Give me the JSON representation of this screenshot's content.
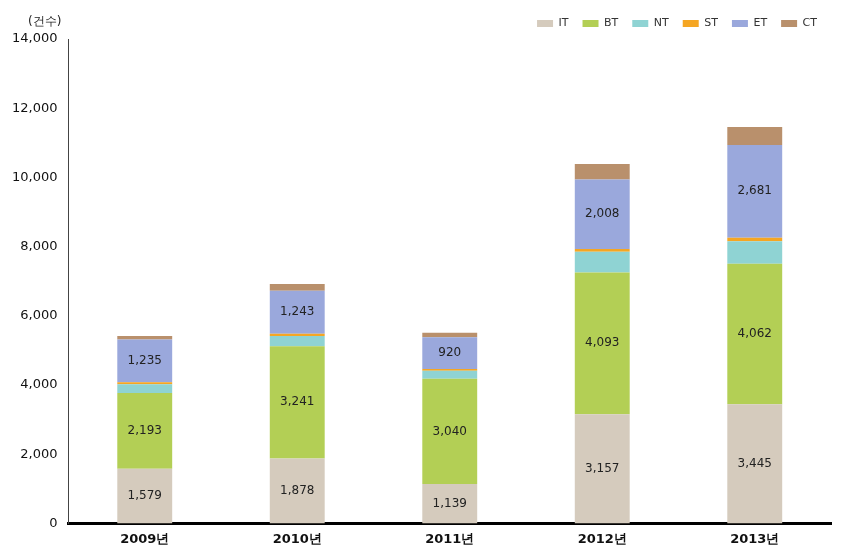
{
  "chart_data": {
    "type": "bar",
    "stacked": true,
    "grid": false,
    "legend": "top-right",
    "y_label": "(건수)",
    "categories": [
      "2009년",
      "2010년",
      "2011년",
      "2012년",
      "2013년"
    ],
    "ylim": [
      0,
      14000
    ],
    "yticks": [
      0,
      {
        "value": 2000,
        "label": "2,000"
      },
      {
        "value": 4000,
        "label": "4,000"
      },
      {
        "value": 6000,
        "label": "6,000"
      },
      {
        "value": 8000,
        "label": "8,000"
      },
      {
        "value": 10000,
        "label": "10,000"
      },
      {
        "value": 12000,
        "label": "12,000"
      },
      {
        "value": 14000,
        "label": "14,000"
      }
    ],
    "series": [
      {
        "name": "IT",
        "color": "#d5cbbd",
        "values": [
          1579,
          1878,
          1139,
          3157,
          3445
        ],
        "data_labels": true,
        "value_labels": [
          "1,579",
          "1,878",
          "1,139",
          "3,157",
          "3,445"
        ]
      },
      {
        "name": "BT",
        "color": "#b3cf55",
        "values": [
          2193,
          3241,
          3040,
          4093,
          4062
        ],
        "data_labels": true,
        "value_labels": [
          "2,193",
          "3,241",
          "3,040",
          "4,093",
          "4,062"
        ]
      },
      {
        "name": "NT",
        "color": "#8fd3d3",
        "values": [
          250,
          300,
          230,
          600,
          650
        ]
      },
      {
        "name": "ST",
        "color": "#f5a623",
        "values": [
          60,
          60,
          50,
          80,
          100
        ]
      },
      {
        "name": "ET",
        "color": "#9aa8dc",
        "values": [
          1235,
          1243,
          920,
          2008,
          2681
        ],
        "data_labels": true,
        "value_labels": [
          "1,235",
          "1,243",
          "920",
          "2,008",
          "2,681"
        ]
      },
      {
        "name": "CT",
        "color": "#b9906c",
        "values": [
          100,
          200,
          130,
          450,
          520
        ]
      }
    ]
  }
}
